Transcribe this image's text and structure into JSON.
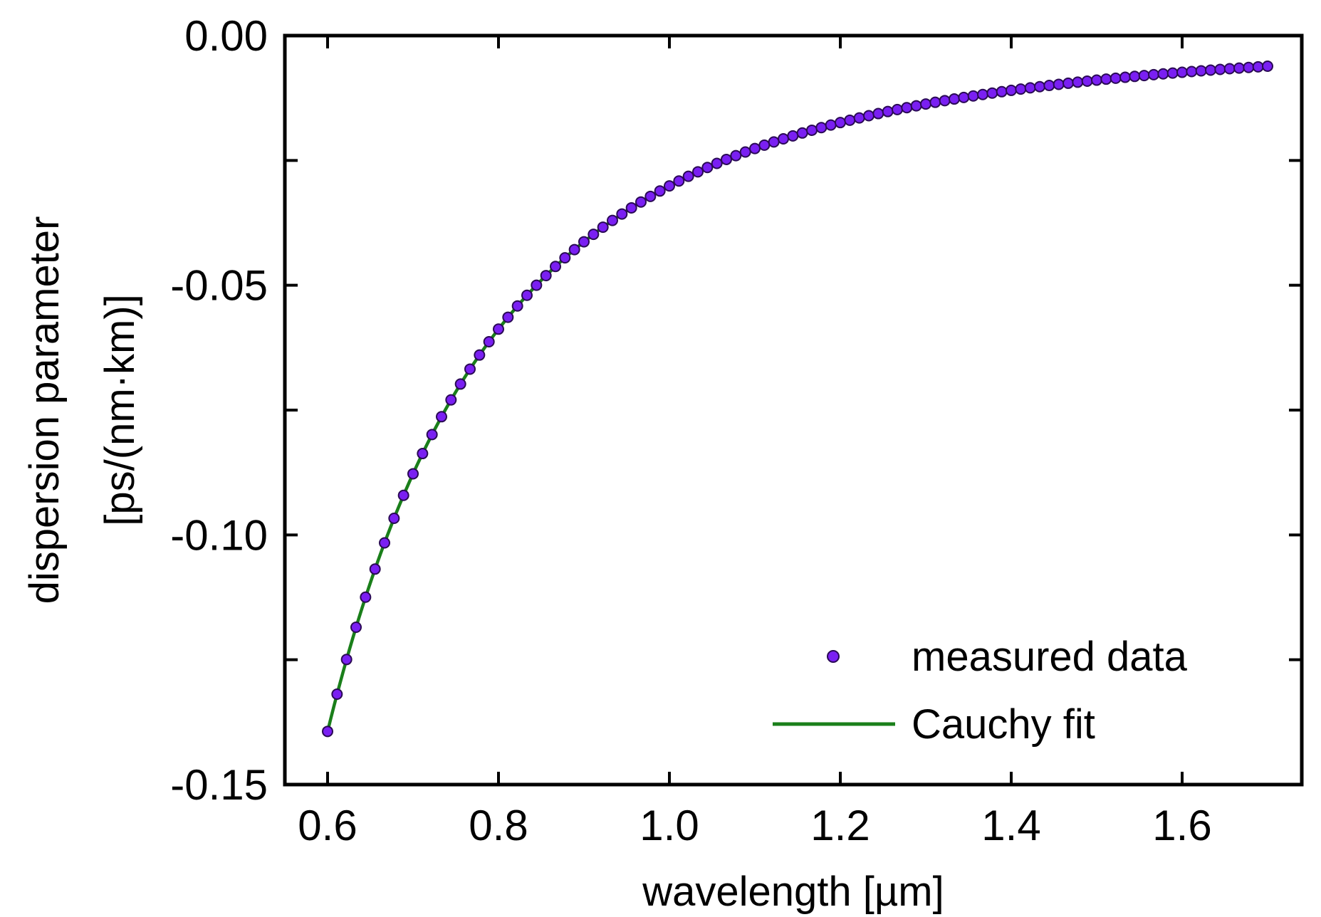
{
  "chart_data": {
    "type": "scatter",
    "title": "",
    "xlabel": "wavelength [µm]",
    "ylabel_line1": "dispersion parameter",
    "ylabel_line2": "[ps/(nm·km)]",
    "xlim": [
      0.55,
      1.74
    ],
    "ylim": [
      -0.15,
      0.0
    ],
    "xticks": [
      0.6,
      0.8,
      1.0,
      1.2,
      1.4,
      1.6
    ],
    "xtick_labels": [
      "0.6",
      "0.8",
      "1.0",
      "1.2",
      "1.4",
      "1.6"
    ],
    "yticks": [
      0.0,
      -0.025,
      -0.05,
      -0.075,
      -0.1,
      -0.125,
      -0.15
    ],
    "ytick_labels": [
      "0.00",
      "",
      "-0.05",
      "",
      "-0.10",
      "",
      "-0.15"
    ],
    "grid": false,
    "legend_position": "bottom-right",
    "series": [
      {
        "name": "measured data",
        "kind": "markers",
        "color": "#7a1ff2",
        "edge_color": "#2a0a55",
        "x_start": 0.6,
        "x_end": 1.7,
        "x_step": 0.0111,
        "model": "D = a / x^3",
        "a": -0.0301
      },
      {
        "name": "Cauchy fit",
        "kind": "line",
        "color": "#1a7f1a",
        "x_start": 0.6,
        "x_end": 1.7,
        "model": "D = a / x^3",
        "a": -0.0301
      }
    ],
    "sample_points": [
      {
        "x": 0.6,
        "y": -0.1393
      },
      {
        "x": 0.7,
        "y": -0.0878
      },
      {
        "x": 0.8,
        "y": -0.0588
      },
      {
        "x": 1.0,
        "y": -0.0301
      },
      {
        "x": 1.2,
        "y": -0.0174
      },
      {
        "x": 1.4,
        "y": -0.011
      },
      {
        "x": 1.6,
        "y": -0.0073
      },
      {
        "x": 1.7,
        "y": -0.0061
      }
    ]
  }
}
